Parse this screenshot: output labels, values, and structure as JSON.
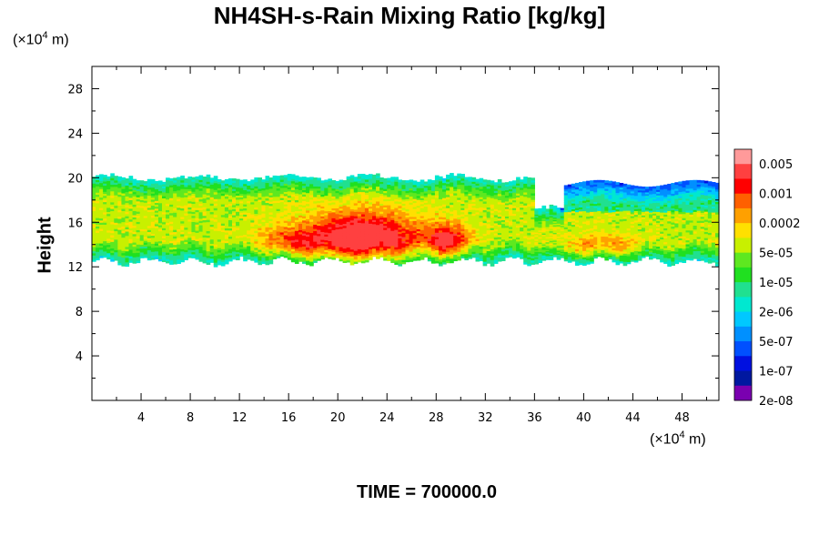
{
  "chart_data": {
    "type": "heatmap",
    "title": "NH4SH-s-Rain Mixing Ratio [kg/kg]",
    "ylabel": "Height",
    "x_unit": "×10⁴ m",
    "y_unit": "×10⁴ m",
    "xlim": [
      0,
      51
    ],
    "ylim": [
      0,
      30
    ],
    "x_ticks": [
      4,
      8,
      12,
      16,
      20,
      24,
      28,
      32,
      36,
      40,
      44,
      48
    ],
    "y_ticks": [
      4,
      8,
      12,
      16,
      20,
      24,
      28
    ],
    "colorbar": {
      "labels": [
        "0.005",
        "0.001",
        "0.0002",
        "5e-05",
        "1e-05",
        "2e-06",
        "5e-07",
        "1e-07",
        "2e-08"
      ],
      "colors": [
        "#ff9a9a",
        "#ff4040",
        "#ff0000",
        "#ff6000",
        "#ffa000",
        "#ffe000",
        "#c8f000",
        "#5ee820",
        "#20e020",
        "#20e090",
        "#00e8d0",
        "#00c8ff",
        "#0090ff",
        "#0050ff",
        "#0010e0",
        "#0018a0",
        "#7a00b0"
      ]
    },
    "field": {
      "description_values": "shaded band of mixing ratio",
      "band_bottom_height": 12.5,
      "band_top_height": 20,
      "core_x_range": [
        18,
        26
      ],
      "core_height_range": [
        12.5,
        17
      ]
    },
    "time_label": "TIME = 700000.0"
  }
}
